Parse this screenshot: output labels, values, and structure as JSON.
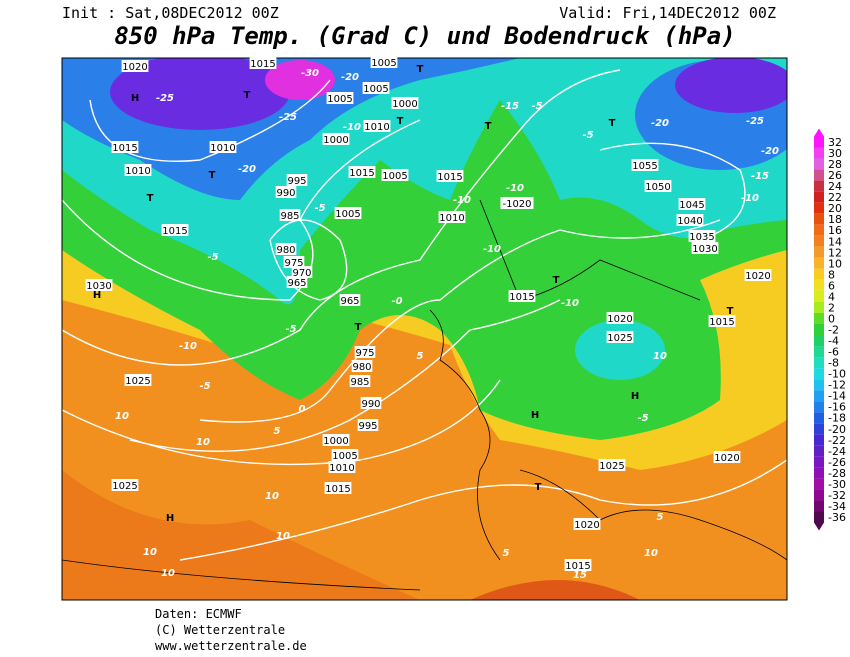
{
  "header": {
    "init": "Init : Sat,08DEC2012 00Z",
    "valid": "Valid: Fri,14DEC2012 00Z",
    "title": "850 hPa Temp. (Grad C) und Bodendruck (hPa)"
  },
  "colorbar": {
    "ticks": [
      32,
      30,
      28,
      26,
      24,
      22,
      20,
      18,
      16,
      14,
      12,
      10,
      8,
      6,
      4,
      2,
      0,
      -2,
      -4,
      -6,
      -8,
      -10,
      -12,
      -14,
      -16,
      -18,
      -20,
      -22,
      -24,
      -26,
      -28,
      -30,
      -32,
      -34,
      -36
    ],
    "colors": [
      "#ff14ff",
      "#f040f0",
      "#e060e0",
      "#d05090",
      "#c83040",
      "#d02020",
      "#e03010",
      "#e85010",
      "#f06a18",
      "#f28020",
      "#f49a2a",
      "#f6b42a",
      "#f8cc20",
      "#f0e020",
      "#d8ec20",
      "#a8ec20",
      "#60dc28",
      "#30d038",
      "#20d060",
      "#20d890",
      "#20dcc0",
      "#20d8e0",
      "#20c0f0",
      "#20a0f0",
      "#2080ec",
      "#2060e0",
      "#3040d8",
      "#4828d0",
      "#6020c8",
      "#7818c0",
      "#9010b8",
      "#a010a8",
      "#900890",
      "#700870",
      "#500850"
    ]
  },
  "map": {
    "labels": [
      "1020",
      "H",
      "-25",
      "1015",
      "-30",
      "-20",
      "1005",
      "T",
      "T",
      "1005",
      "1005",
      "1000",
      "-25",
      "-10",
      "1010",
      "T",
      "-15",
      "-5",
      "T",
      "-5",
      "T",
      "-20",
      "-25",
      "1015",
      "1010",
      "1000",
      "1010",
      "T",
      "-20",
      "1015",
      "1005",
      "995",
      "990",
      "1015",
      "T",
      "-10",
      "-10",
      "-1020",
      "1055",
      "1050",
      "1045",
      "-10",
      "-15",
      "-20",
      "985",
      "-5",
      "1005",
      "1010",
      "1040",
      "1015",
      "1035",
      "980",
      "-10",
      "1030",
      "-5",
      "975",
      "970",
      "965",
      "T",
      "1020",
      "H",
      "1030",
      "965",
      "-0",
      "1015",
      "-10",
      "T",
      "1015",
      "T",
      "-5",
      "1020",
      "1025",
      "-10",
      "975",
      "5",
      "10",
      "980",
      "985",
      "-5",
      "1025",
      "H",
      "-5",
      "H",
      "990",
      "0",
      "10",
      "995",
      "5",
      "10",
      "1000",
      "1005",
      "1020",
      "1025",
      "1010",
      "T",
      "1015",
      "1025",
      "10",
      "H",
      "5",
      "1020",
      "10",
      "10",
      "5",
      "10",
      "1015",
      "15",
      "10"
    ]
  },
  "footer": {
    "lines": [
      "Daten: ECMWF",
      "(C) Wetterzentrale",
      "www.wetterzentrale.de"
    ]
  }
}
